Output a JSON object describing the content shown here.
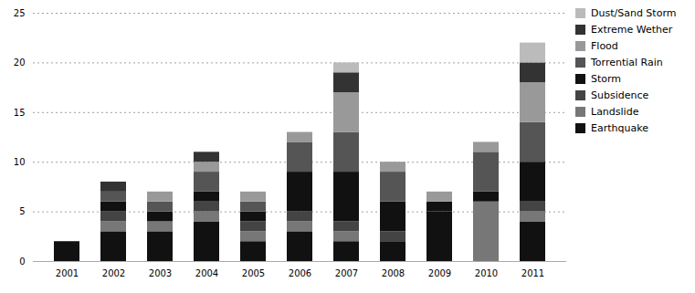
{
  "chart_data": {
    "type": "bar",
    "stacked": true,
    "categories": [
      "2001",
      "2002",
      "2003",
      "2004",
      "2005",
      "2006",
      "2007",
      "2008",
      "2009",
      "2010",
      "2011"
    ],
    "series": [
      {
        "name": "Earthquake",
        "color": "#111111",
        "values": [
          2,
          3,
          3,
          4,
          2,
          3,
          2,
          2,
          5,
          0,
          4
        ]
      },
      {
        "name": "Landslide",
        "color": "#777777",
        "values": [
          0,
          1,
          1,
          1,
          1,
          1,
          1,
          0,
          0,
          6,
          1
        ]
      },
      {
        "name": "Subsidence",
        "color": "#444444",
        "values": [
          0,
          1,
          0,
          1,
          1,
          1,
          1,
          1,
          0,
          0,
          1
        ]
      },
      {
        "name": "Storm",
        "color": "#111111",
        "values": [
          0,
          1,
          1,
          1,
          1,
          4,
          5,
          3,
          1,
          1,
          4
        ]
      },
      {
        "name": "Torrential Rain",
        "color": "#555555",
        "values": [
          0,
          1,
          1,
          2,
          1,
          3,
          4,
          3,
          0,
          4,
          4
        ]
      },
      {
        "name": "Flood",
        "color": "#999999",
        "values": [
          0,
          0,
          1,
          1,
          1,
          1,
          4,
          1,
          1,
          1,
          4
        ]
      },
      {
        "name": "Extreme Wether",
        "color": "#333333",
        "values": [
          0,
          1,
          0,
          1,
          0,
          0,
          2,
          0,
          0,
          0,
          2
        ]
      },
      {
        "name": "Dust/Sand Storm",
        "color": "#bbbbbb",
        "values": [
          0,
          0,
          0,
          0,
          0,
          0,
          1,
          0,
          0,
          0,
          2
        ]
      }
    ],
    "ylim": [
      0,
      25
    ],
    "yticks": [
      0,
      5,
      10,
      15,
      20,
      25
    ],
    "grid": true,
    "legend": "right"
  }
}
